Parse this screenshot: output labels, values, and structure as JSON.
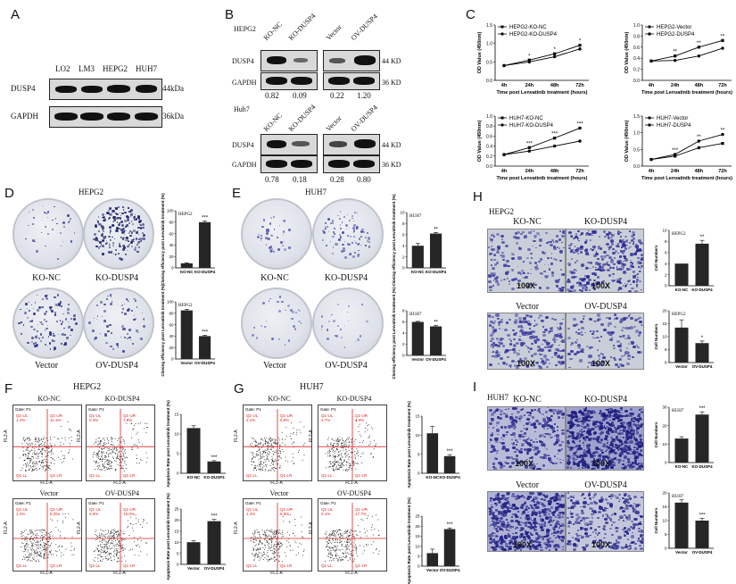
{
  "panels": {
    "A": {
      "label": "A",
      "lanes": [
        "LO2",
        "LM3",
        "HEPG2",
        "HUH7"
      ],
      "rows": [
        {
          "name": "DUSP4",
          "size": "44kDa"
        },
        {
          "name": "GAPDH",
          "size": "36kDa"
        }
      ]
    },
    "B": {
      "label": "B",
      "blots": [
        {
          "cell": "HEPG2",
          "lanes_left": [
            "KO-NC",
            "KO-DUSP4"
          ],
          "lanes_right": [
            "Vector",
            "OV-DUSP4"
          ],
          "rows": [
            {
              "name": "DUSP4",
              "size": "44 KD"
            },
            {
              "name": "GAPDH",
              "size": "36 KD"
            }
          ],
          "quant_left": [
            "0.82",
            "0.09"
          ],
          "quant_right": [
            "0.22",
            "1.20"
          ]
        },
        {
          "cell": "Huh7",
          "lanes_left": [
            "KO-NC",
            "KO-DUSP4"
          ],
          "lanes_right": [
            "Vector",
            "OV-DUSP4"
          ],
          "rows": [
            {
              "name": "DUSP4",
              "size": "44 KD"
            },
            {
              "name": "GAPDH",
              "size": "36 KD"
            }
          ],
          "quant_left": [
            "0.78",
            "0.18"
          ],
          "quant_right": [
            "0.28",
            "0.80"
          ]
        }
      ]
    },
    "C": {
      "label": "C"
    },
    "D": {
      "label": "D",
      "title": "HEPG2",
      "dish_labels_top": [
        "KO-NC",
        "KO-DUSP4"
      ],
      "dish_labels_bottom": [
        "Vector",
        "OV-DUSP4"
      ]
    },
    "E": {
      "label": "E",
      "title": "HUH7",
      "dish_labels_top": [
        "KO-NC",
        "KO-DUSP4"
      ],
      "dish_labels_bottom": [
        "Vector",
        "OV-DUSP4"
      ]
    },
    "H": {
      "label": "H",
      "title": "HEPG2",
      "labels_top": [
        "KO-NC",
        "KO-DUSP4"
      ],
      "labels_bottom": [
        "Vector",
        "OV-DUSP4"
      ],
      "magnification": "100X"
    },
    "F": {
      "label": "F",
      "title": "HEPG2",
      "labels_top": [
        "KO-NC",
        "KO-DUSP4"
      ],
      "labels_bottom": [
        "Vector",
        "OV-DUSP4"
      ]
    },
    "G": {
      "label": "G",
      "title": "HUH7",
      "labels_top": [
        "KO-NC",
        "KO-DUSP4"
      ],
      "labels_bottom": [
        "Vector",
        "OV-DUSP4"
      ]
    },
    "I": {
      "label": "I",
      "title": "HUH7",
      "labels_top": [
        "KO-NC",
        "KO-DUSP4"
      ],
      "labels_bottom": [
        "Vector",
        "OV-DUSP4"
      ],
      "magnification": "100X"
    }
  },
  "flow": {
    "gate": "Gate: P1",
    "q_ul": "Q1-UL",
    "q_ur": "Q1-UR",
    "q_ll": "Q1-LL",
    "q_lr": "Q1-LR",
    "xaxis": "FL1-A",
    "yaxis": "FL2-A",
    "F_top_left": {
      "ul": "1.4%",
      "ur": "11.1%"
    },
    "F_top_right": {
      "ul": "0.3%",
      "ur": "7.8%"
    },
    "F_bot_left": {
      "ul": "1.4%",
      "ur": "8.3%"
    },
    "F_bot_right": {
      "ul": "0.6%",
      "ur": "15.0%"
    },
    "G_top_left": {
      "ul": "2.1%",
      "ur": "9.9%"
    },
    "G_top_right": {
      "ul": "2.7%",
      "ur": "4.3%"
    },
    "G_bot_left": {
      "ul": "1.4%",
      "ur": "5.9%"
    },
    "G_bot_right": {
      "ul": "0.1%",
      "ur": "17.7%"
    }
  },
  "chart_data": [
    {
      "type": "line",
      "panel": "C",
      "title": "",
      "xlabel": "Time post Lenvatinib treatment (hours)",
      "ylabel": "OD Value (450nm)",
      "categories": [
        "4h",
        "24h",
        "48h",
        "72h"
      ],
      "ylim": [
        0.0,
        1.5
      ],
      "yticks": [
        "0.0",
        "0.5",
        "1.0",
        "1.5"
      ],
      "series": [
        {
          "name": "HEPG2-KO-NC",
          "values": [
            0.4,
            0.55,
            0.72,
            0.95
          ],
          "marker": "square"
        },
        {
          "name": "HEPG2-KO-DUSP4",
          "values": [
            0.4,
            0.5,
            0.64,
            0.85
          ],
          "marker": "circle"
        }
      ],
      "annotations": [
        "*",
        "*",
        "*"
      ],
      "legend": "top-left"
    },
    {
      "type": "line",
      "panel": "C",
      "title": "",
      "xlabel": "Time post Lenvatinib treatment (hours)",
      "ylabel": "OD Value (450nm)",
      "categories": [
        "4h",
        "24h",
        "48h",
        "72h"
      ],
      "ylim": [
        0.0,
        1.0
      ],
      "yticks": [
        "0.0",
        "0.2",
        "0.4",
        "0.6",
        "0.8",
        "1.0"
      ],
      "series": [
        {
          "name": "HEPG2-Vector",
          "values": [
            0.35,
            0.36,
            0.44,
            0.58
          ],
          "marker": "circle"
        },
        {
          "name": "HEPG2-DUSP4",
          "values": [
            0.35,
            0.44,
            0.6,
            0.72
          ],
          "marker": "square"
        }
      ],
      "annotations": [
        "**",
        "**",
        "**"
      ],
      "legend": "top-left"
    },
    {
      "type": "line",
      "panel": "C",
      "title": "",
      "xlabel": "Time post Lenvatinib treatment (hours)",
      "ylabel": "OD Value (450nm)",
      "categories": [
        "4h",
        "24h",
        "48h",
        "72h"
      ],
      "ylim": [
        0.0,
        1.0
      ],
      "yticks": [
        "0.0",
        "0.2",
        "0.4",
        "0.6",
        "0.8",
        "1.0"
      ],
      "series": [
        {
          "name": "HUH7-KO-NC",
          "values": [
            0.23,
            0.37,
            0.56,
            0.76
          ],
          "marker": "square"
        },
        {
          "name": "HUH7-KO-DUSP4",
          "values": [
            0.23,
            0.3,
            0.4,
            0.5
          ],
          "marker": "circle"
        }
      ],
      "annotations": [
        "***",
        "***",
        "***"
      ],
      "legend": "top-left"
    },
    {
      "type": "line",
      "panel": "C",
      "title": "",
      "xlabel": "Time post Lenvatinib treatment (hours)",
      "ylabel": "OD Value (450nm)",
      "categories": [
        "4h",
        "24h",
        "48h",
        "72h"
      ],
      "ylim": [
        0.0,
        1.5
      ],
      "yticks": [
        "0.0",
        "0.5",
        "1.0",
        "1.5"
      ],
      "series": [
        {
          "name": "HUH7-Vector",
          "values": [
            0.2,
            0.35,
            0.75,
            0.95
          ],
          "marker": "circle"
        },
        {
          "name": "HUH7-DUSP4",
          "values": [
            0.2,
            0.3,
            0.55,
            0.68
          ],
          "marker": "square"
        }
      ],
      "annotations": [
        "***",
        "**",
        "**"
      ],
      "legend": "top-left"
    },
    {
      "type": "bar",
      "panel": "D",
      "title": "HEPG2",
      "ylabel": "Cloning efficiency post Lenvatinib treatment (%)",
      "categories": [
        "KO-NC",
        "KO-DUSP4"
      ],
      "values": [
        8,
        80
      ],
      "errors": [
        1,
        2
      ],
      "ylim": [
        0,
        100
      ],
      "yticks": [
        "0",
        "20",
        "40",
        "60",
        "80",
        "100"
      ],
      "significance": "***"
    },
    {
      "type": "bar",
      "panel": "D",
      "title": "HEPG2",
      "ylabel": "Cloning efficiency post Lenvatinib treatment (%)",
      "categories": [
        "Vector",
        "OV-DUSP4"
      ],
      "values": [
        85,
        40
      ],
      "errors": [
        2,
        1.5
      ],
      "ylim": [
        0,
        100
      ],
      "yticks": [
        "0",
        "20",
        "40",
        "60",
        "80",
        "100"
      ],
      "significance": "***"
    },
    {
      "type": "bar",
      "panel": "E",
      "title": "HUH7",
      "ylabel": "Cloning efficiency post Lenvatinib treatment (%)",
      "categories": [
        "KO-NC",
        "KO-DUSP4"
      ],
      "values": [
        4,
        6.2
      ],
      "errors": [
        0.4,
        0.2
      ],
      "ylim": [
        0,
        10
      ],
      "yticks": [
        "0",
        "2",
        "4",
        "6",
        "8",
        "10"
      ],
      "significance": "**"
    },
    {
      "type": "bar",
      "panel": "E",
      "title": "HUH7",
      "ylabel": "Cloning efficiency post Lenvatinib treatment (%)",
      "categories": [
        "Vector",
        "OV-DUSP4"
      ],
      "values": [
        6,
        5.2
      ],
      "errors": [
        0.1,
        0.15
      ],
      "ylim": [
        0,
        8
      ],
      "yticks": [
        "0",
        "2",
        "4",
        "6",
        "8"
      ],
      "significance": "**"
    },
    {
      "type": "bar",
      "panel": "H",
      "title": "HEPG2",
      "ylabel": "Cell Numbers",
      "categories": [
        "KO-NC",
        "KO-DUSP4"
      ],
      "values": [
        4,
        7.6
      ],
      "errors": [
        0,
        0.6
      ],
      "ylim": [
        0,
        10
      ],
      "yticks": [
        "0",
        "2",
        "4",
        "6",
        "8",
        "10"
      ],
      "significance": "**"
    },
    {
      "type": "bar",
      "panel": "H",
      "title": "HEPG2",
      "ylabel": "Cell Numbers",
      "categories": [
        "Vector",
        "OV-DUSP4"
      ],
      "values": [
        13.5,
        7.5
      ],
      "errors": [
        3,
        0.8
      ],
      "ylim": [
        0,
        20
      ],
      "yticks": [
        "0",
        "5",
        "10",
        "15",
        "20"
      ],
      "significance": "*"
    },
    {
      "type": "bar",
      "panel": "F",
      "title": "",
      "ylabel": "Apoptosis Rate post Lenvatinib treatment (%)",
      "categories": [
        "KO-NC",
        "KO-DUSP4"
      ],
      "values": [
        11.5,
        3
      ],
      "errors": [
        0.6,
        0.2
      ],
      "ylim": [
        0,
        15
      ],
      "yticks": [
        "0",
        "5",
        "10",
        "15"
      ],
      "significance": "***"
    },
    {
      "type": "bar",
      "panel": "F",
      "title": "",
      "ylabel": "Apoptosis Rate post Lenvatinib treatment (%)",
      "categories": [
        "Vector",
        "OV-DUSP4"
      ],
      "values": [
        10,
        19.5
      ],
      "errors": [
        0.6,
        0.8
      ],
      "ylim": [
        0,
        25
      ],
      "yticks": [
        "0",
        "5",
        "10",
        "15",
        "20",
        "25"
      ],
      "significance": "***"
    },
    {
      "type": "bar",
      "panel": "G",
      "title": "",
      "ylabel": "Apoptosis Rate post Lenvatinib treatment (%)",
      "categories": [
        "KO-NC",
        "KO-DUSP4"
      ],
      "values": [
        10.5,
        4.5
      ],
      "errors": [
        1.8,
        0.4
      ],
      "ylim": [
        0,
        15
      ],
      "yticks": [
        "0",
        "5",
        "10",
        "15"
      ],
      "significance": "***"
    },
    {
      "type": "bar",
      "panel": "G",
      "title": "",
      "ylabel": "Apoptosis Rate post Lenvatinib treatment (%)",
      "categories": [
        "Vector",
        "OV-DUSP4"
      ],
      "values": [
        6.5,
        18.5
      ],
      "errors": [
        2,
        0.6
      ],
      "ylim": [
        0,
        25
      ],
      "yticks": [
        "0",
        "5",
        "10",
        "15",
        "20",
        "25"
      ],
      "significance": "***"
    },
    {
      "type": "bar",
      "panel": "I",
      "title": "HUH7",
      "ylabel": "Cell Numbers",
      "categories": [
        "KO-NC",
        "KO-DUSP4"
      ],
      "values": [
        13,
        26
      ],
      "errors": [
        1,
        1.5
      ],
      "ylim": [
        0,
        30
      ],
      "yticks": [
        "0",
        "10",
        "20",
        "30"
      ],
      "significance": "***"
    },
    {
      "type": "bar",
      "panel": "I",
      "title": "HUH7",
      "ylabel": "Cell Numbers",
      "categories": [
        "Vector",
        "OV-DUSP4"
      ],
      "values": [
        16.5,
        10
      ],
      "errors": [
        1,
        0.8
      ],
      "ylim": [
        0,
        20
      ],
      "yticks": [
        "0",
        "5",
        "10",
        "15",
        "20"
      ],
      "significance": "***"
    }
  ]
}
